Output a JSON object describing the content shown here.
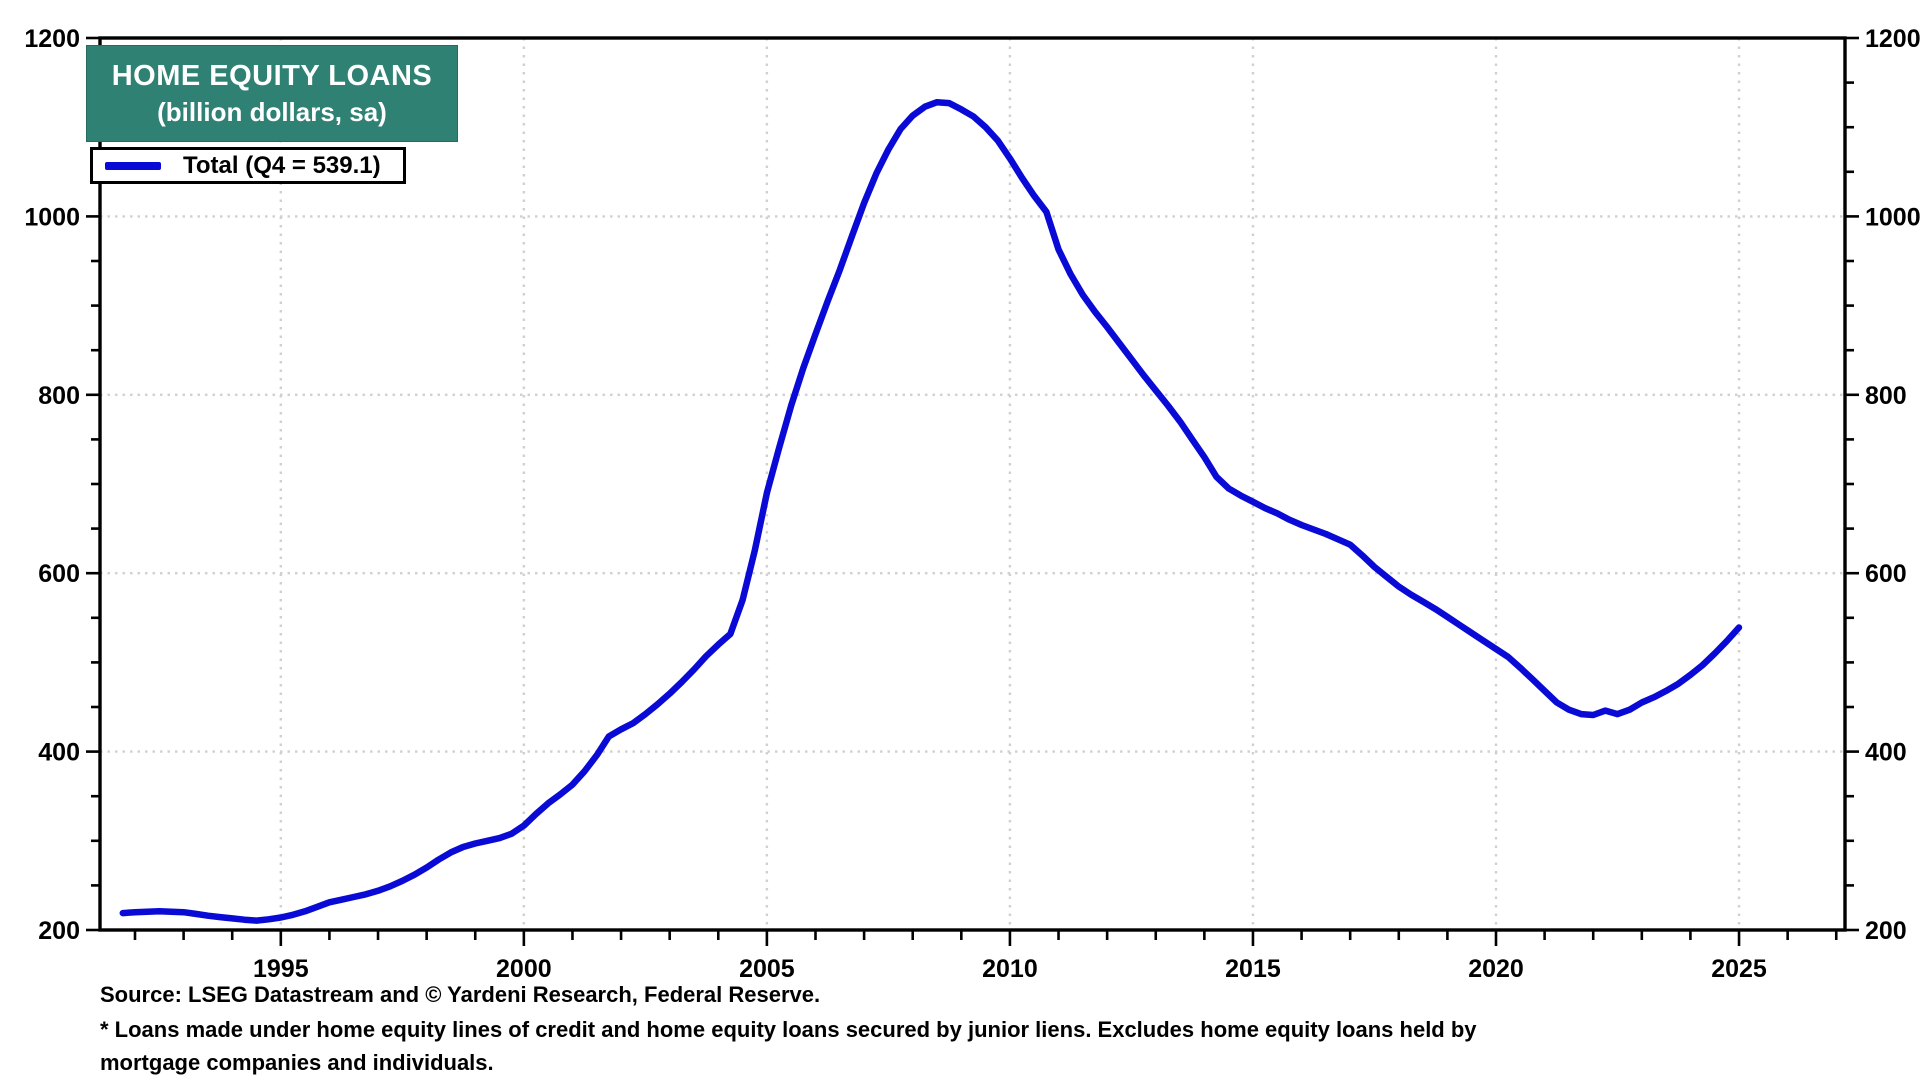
{
  "header": {
    "title": "HOME EQUITY LOANS",
    "subtitle": "(billion dollars, sa)"
  },
  "legend": {
    "label": "Total (Q4 = 539.1)"
  },
  "footer": {
    "source": "Source: LSEG Datastream and © Yardeni Research, Federal Reserve.",
    "footnote": "* Loans made under home equity lines of credit and home equity loans secured by junior liens. Excludes home equity loans held by mortgage companies and individuals."
  },
  "colors": {
    "accent_teal": "#2f8173",
    "line_blue": "#0a0ad6",
    "grid_gray": "#d0d0d0",
    "axis_black": "#000000",
    "title_text": "#ffffff"
  },
  "chart_data": {
    "type": "line",
    "title": "HOME EQUITY LOANS",
    "subtitle": "(billion dollars, sa)",
    "ylabel": "billion dollars, seasonally adjusted",
    "xlim": [
      1991.28,
      2027.18
    ],
    "ylim": [
      200,
      1200
    ],
    "x_major_ticks": [
      1995,
      2000,
      2005,
      2010,
      2015,
      2020,
      2025
    ],
    "x_minor_step": 1,
    "y_major_ticks": [
      200,
      400,
      600,
      800,
      1000,
      1200
    ],
    "y_minor_step": 50,
    "grid": true,
    "legend_position": "top-left",
    "last_point_label": "Q4 = 539.1",
    "series": [
      {
        "name": "Total (Q4 = 539.1)",
        "points": [
          [
            1991.75,
            219
          ],
          [
            1992.0,
            220
          ],
          [
            1992.25,
            220.5
          ],
          [
            1992.5,
            221
          ],
          [
            1992.75,
            220.5
          ],
          [
            1993.0,
            220
          ],
          [
            1993.25,
            218
          ],
          [
            1993.5,
            216
          ],
          [
            1993.75,
            214.5
          ],
          [
            1994.0,
            213
          ],
          [
            1994.25,
            211.5
          ],
          [
            1994.5,
            210.5
          ],
          [
            1994.75,
            212
          ],
          [
            1995.0,
            214
          ],
          [
            1995.25,
            217
          ],
          [
            1995.5,
            221
          ],
          [
            1995.75,
            226
          ],
          [
            1996.0,
            231
          ],
          [
            1996.25,
            234
          ],
          [
            1996.5,
            237
          ],
          [
            1996.75,
            240
          ],
          [
            1997.0,
            244
          ],
          [
            1997.25,
            249
          ],
          [
            1997.5,
            255
          ],
          [
            1997.75,
            262
          ],
          [
            1998.0,
            270
          ],
          [
            1998.25,
            279
          ],
          [
            1998.5,
            287
          ],
          [
            1998.75,
            293
          ],
          [
            1999.0,
            297
          ],
          [
            1999.25,
            300
          ],
          [
            1999.5,
            303
          ],
          [
            1999.75,
            308
          ],
          [
            2000.0,
            317
          ],
          [
            2000.25,
            330
          ],
          [
            2000.5,
            342
          ],
          [
            2000.75,
            352
          ],
          [
            2001.0,
            363
          ],
          [
            2001.25,
            378
          ],
          [
            2001.5,
            396
          ],
          [
            2001.75,
            417
          ],
          [
            2002.0,
            425
          ],
          [
            2002.25,
            432
          ],
          [
            2002.5,
            442
          ],
          [
            2002.75,
            453
          ],
          [
            2003.0,
            465
          ],
          [
            2003.25,
            478
          ],
          [
            2003.5,
            492
          ],
          [
            2003.75,
            507
          ],
          [
            2004.0,
            520
          ],
          [
            2004.25,
            532
          ],
          [
            2004.5,
            570
          ],
          [
            2004.75,
            625
          ],
          [
            2005.0,
            690
          ],
          [
            2005.25,
            740
          ],
          [
            2005.5,
            788
          ],
          [
            2005.75,
            830
          ],
          [
            2006.0,
            868
          ],
          [
            2006.25,
            905
          ],
          [
            2006.5,
            940
          ],
          [
            2006.75,
            978
          ],
          [
            2007.0,
            1015
          ],
          [
            2007.25,
            1048
          ],
          [
            2007.5,
            1075
          ],
          [
            2007.75,
            1098
          ],
          [
            2008.0,
            1113
          ],
          [
            2008.25,
            1123
          ],
          [
            2008.5,
            1128
          ],
          [
            2008.75,
            1127
          ],
          [
            2009.0,
            1120
          ],
          [
            2009.25,
            1112
          ],
          [
            2009.5,
            1100
          ],
          [
            2009.75,
            1085
          ],
          [
            2010.0,
            1065
          ],
          [
            2010.25,
            1043
          ],
          [
            2010.5,
            1023
          ],
          [
            2010.75,
            1005
          ],
          [
            2011.0,
            963
          ],
          [
            2011.25,
            935
          ],
          [
            2011.5,
            912
          ],
          [
            2011.75,
            893
          ],
          [
            2012.0,
            876
          ],
          [
            2012.25,
            858
          ],
          [
            2012.5,
            840
          ],
          [
            2012.75,
            822
          ],
          [
            2013.0,
            805
          ],
          [
            2013.25,
            788
          ],
          [
            2013.5,
            770
          ],
          [
            2013.75,
            750
          ],
          [
            2014.0,
            730
          ],
          [
            2014.25,
            708
          ],
          [
            2014.5,
            695
          ],
          [
            2014.75,
            687
          ],
          [
            2015.0,
            680
          ],
          [
            2015.25,
            673
          ],
          [
            2015.5,
            667
          ],
          [
            2015.75,
            660
          ],
          [
            2016.0,
            654
          ],
          [
            2016.25,
            649
          ],
          [
            2016.5,
            644
          ],
          [
            2016.75,
            638
          ],
          [
            2017.0,
            632
          ],
          [
            2017.25,
            620
          ],
          [
            2017.5,
            607
          ],
          [
            2017.75,
            596
          ],
          [
            2018.0,
            585
          ],
          [
            2018.25,
            576
          ],
          [
            2018.5,
            568
          ],
          [
            2018.75,
            560
          ],
          [
            2019.0,
            551
          ],
          [
            2019.25,
            542
          ],
          [
            2019.5,
            533
          ],
          [
            2019.75,
            524
          ],
          [
            2020.0,
            515
          ],
          [
            2020.25,
            506
          ],
          [
            2020.5,
            494
          ],
          [
            2020.75,
            481
          ],
          [
            2021.0,
            468
          ],
          [
            2021.25,
            455
          ],
          [
            2021.5,
            447
          ],
          [
            2021.75,
            442
          ],
          [
            2022.0,
            441
          ],
          [
            2022.25,
            446
          ],
          [
            2022.5,
            442
          ],
          [
            2022.75,
            447
          ],
          [
            2023.0,
            455
          ],
          [
            2023.25,
            461
          ],
          [
            2023.5,
            468
          ],
          [
            2023.75,
            476
          ],
          [
            2024.0,
            486
          ],
          [
            2024.25,
            497
          ],
          [
            2024.5,
            510
          ],
          [
            2024.75,
            524
          ],
          [
            2025.0,
            539.1
          ]
        ]
      }
    ]
  }
}
